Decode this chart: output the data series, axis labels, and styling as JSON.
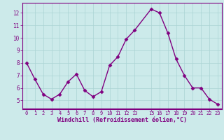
{
  "x": [
    0,
    1,
    2,
    3,
    4,
    5,
    6,
    7,
    8,
    9,
    10,
    11,
    12,
    13,
    15,
    16,
    17,
    18,
    19,
    20,
    21,
    22,
    23
  ],
  "y": [
    8.0,
    6.7,
    5.5,
    5.1,
    5.5,
    6.5,
    7.1,
    5.8,
    5.3,
    5.7,
    7.8,
    8.5,
    9.9,
    10.6,
    12.3,
    12.0,
    10.4,
    8.3,
    7.0,
    6.0,
    6.0,
    5.1,
    4.7
  ],
  "line_color": "#800080",
  "marker": "D",
  "marker_size": 2.5,
  "bg_color": "#cceaea",
  "grid_color": "#aad4d4",
  "xlabel": "Windchill (Refroidissement éolien,°C)",
  "xlabel_color": "#800080",
  "tick_color": "#800080",
  "ylim": [
    4.3,
    12.8
  ],
  "xlim": [
    -0.5,
    23.5
  ],
  "yticks": [
    5,
    6,
    7,
    8,
    9,
    10,
    11,
    12
  ],
  "xticks": [
    0,
    1,
    2,
    3,
    4,
    5,
    6,
    7,
    8,
    9,
    10,
    11,
    12,
    13,
    15,
    16,
    17,
    18,
    19,
    20,
    21,
    22,
    23
  ],
  "spine_color": "#800080",
  "bottom_bar_color": "#800080"
}
